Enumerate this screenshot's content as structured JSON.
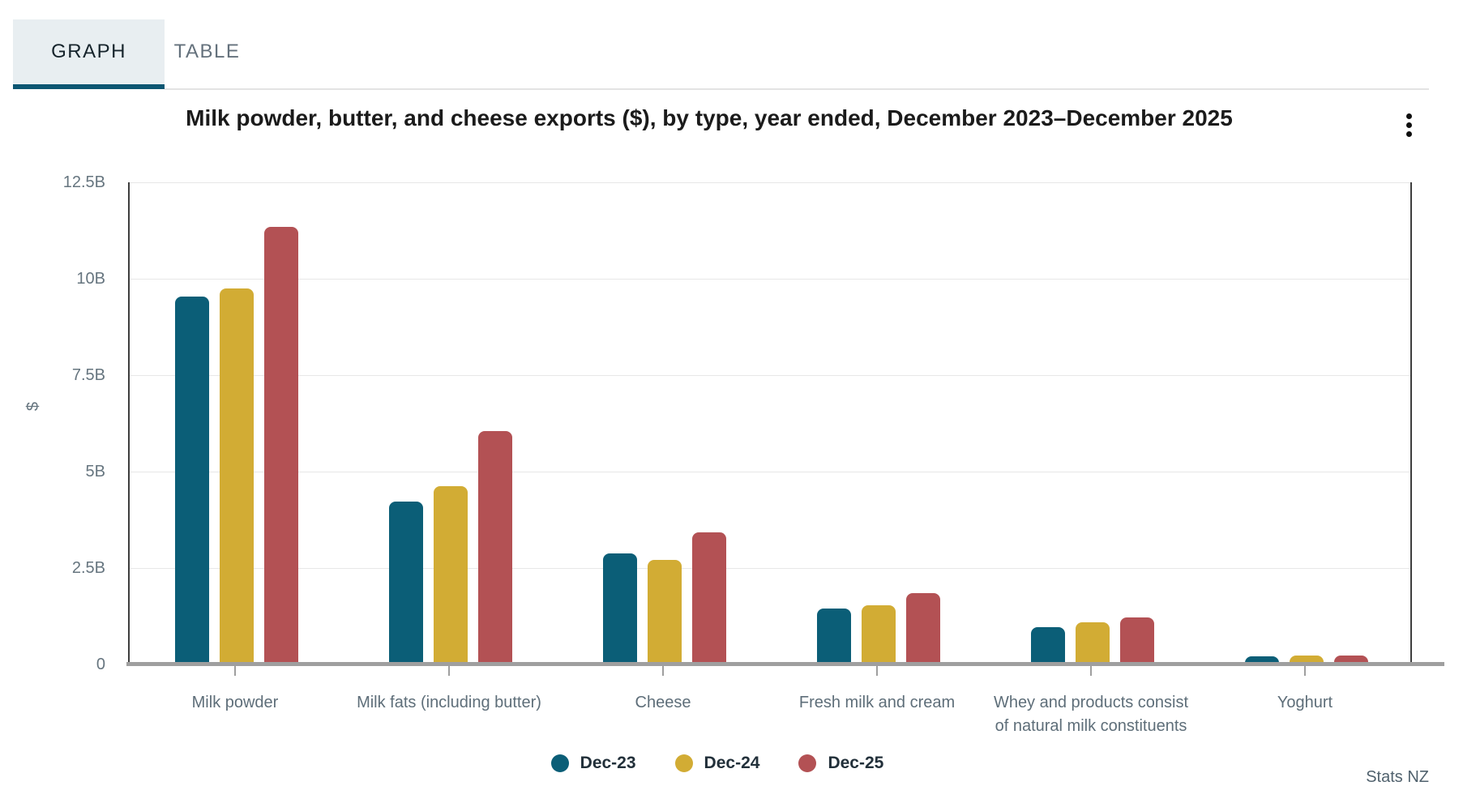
{
  "tabs": {
    "graph": "GRAPH",
    "table": "TABLE"
  },
  "icons": {
    "menu": "kebab-menu"
  },
  "footer": {
    "attribution": "Stats NZ"
  },
  "chart_data": {
    "type": "bar",
    "title": "Milk powder, butter, and cheese exports ($), by type, year ended, December 2023–December 2025",
    "xlabel": "",
    "ylabel": "$",
    "units": "billions of dollars",
    "ylim": [
      0,
      12.5
    ],
    "grid": true,
    "legend_position": "bottom",
    "categories": [
      "Milk powder",
      "Milk fats (including butter)",
      "Cheese",
      "Fresh milk and cream",
      "Whey and products consist of natural milk constituents",
      "Yoghurt"
    ],
    "category_lines": [
      [
        "Milk powder"
      ],
      [
        "Milk fats (including butter)"
      ],
      [
        "Cheese"
      ],
      [
        "Fresh milk and cream"
      ],
      [
        "Whey and products consist",
        "of natural milk constituents"
      ],
      [
        "Yoghurt"
      ]
    ],
    "yticks": [
      {
        "value": 0,
        "label": "0"
      },
      {
        "value": 2.5,
        "label": "2.5B"
      },
      {
        "value": 5,
        "label": "5B"
      },
      {
        "value": 7.5,
        "label": "7.5B"
      },
      {
        "value": 10,
        "label": "10B"
      },
      {
        "value": 12.5,
        "label": "12.5B"
      }
    ],
    "series": [
      {
        "name": "Dec-23",
        "color": "#0b5e77",
        "values": [
          9.54,
          4.22,
          2.87,
          1.46,
          0.97,
          0.2
        ]
      },
      {
        "name": "Dec-24",
        "color": "#d2ac34",
        "values": [
          9.75,
          4.62,
          2.72,
          1.53,
          1.1,
          0.24
        ]
      },
      {
        "name": "Dec-25",
        "color": "#b35154",
        "values": [
          11.34,
          6.06,
          3.43,
          1.85,
          1.22,
          0.23
        ]
      }
    ]
  }
}
